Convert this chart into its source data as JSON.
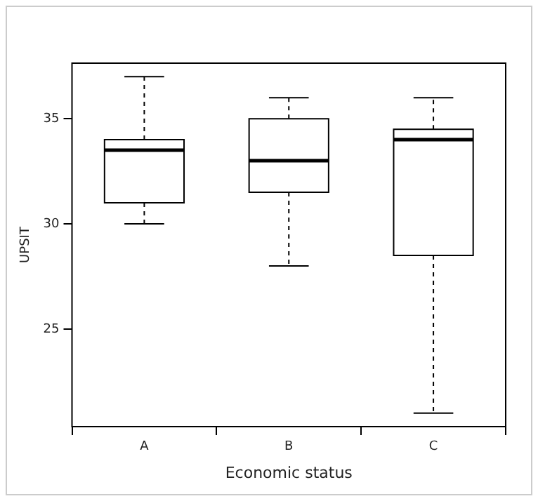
{
  "chart_data": {
    "type": "box",
    "xlabel": "Economic status",
    "ylabel": "UPSIT",
    "categories": [
      "A",
      "B",
      "C"
    ],
    "boxes": [
      {
        "low": 30,
        "q1": 31,
        "median": 33.5,
        "q3": 34,
        "high": 37
      },
      {
        "low": 28,
        "q1": 31.5,
        "median": 33,
        "q3": 35,
        "high": 36
      },
      {
        "low": 21,
        "q1": 28.5,
        "median": 34,
        "q3": 34.5,
        "high": 36
      }
    ],
    "color": "#ffffff",
    "ylim": [
      20.36,
      37.64
    ],
    "yticks": [
      25,
      30,
      35
    ],
    "grid": false,
    "legend": false
  }
}
